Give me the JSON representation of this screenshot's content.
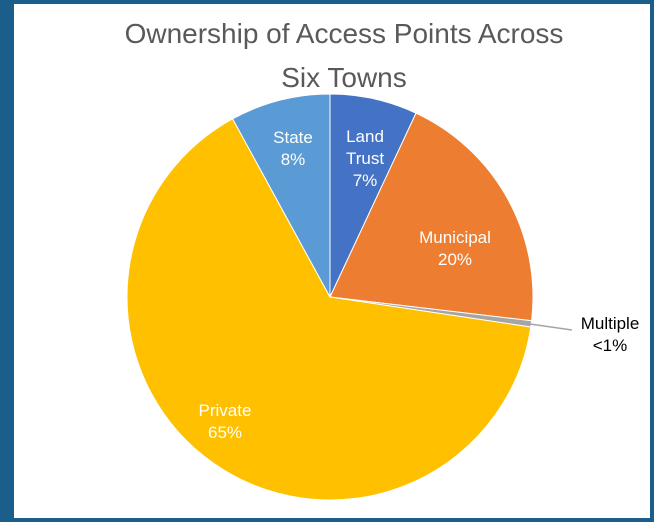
{
  "chart_data": {
    "type": "pie",
    "title": "Ownership of Access Points Across Six Towns",
    "categories": [
      "Land Trust",
      "Municipal",
      "Multiple",
      "Private",
      "State"
    ],
    "values": [
      7,
      20,
      0.5,
      65,
      8
    ],
    "value_labels": [
      "7%",
      "20%",
      "<1%",
      "65%",
      "8%"
    ],
    "colors": [
      "#4472c4",
      "#ed7d31",
      "#a5a5a5",
      "#ffc000",
      "#5b9bd5"
    ]
  }
}
